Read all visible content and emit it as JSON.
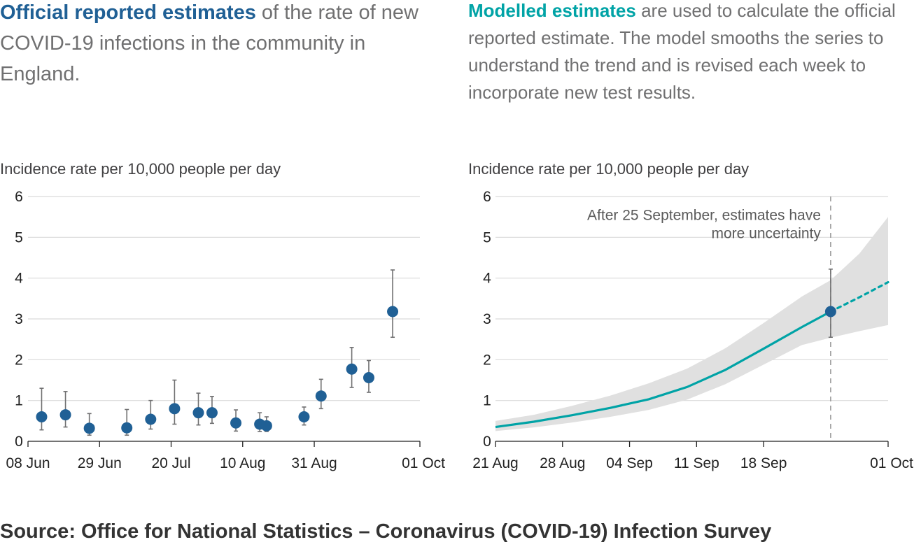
{
  "left_panel": {
    "headline_highlight": "Official reported estimates",
    "headline_rest": " of the rate of new COVID-19 infections in the community in England.",
    "y_axis_label": "Incidence rate per 10,000 people per day"
  },
  "right_panel": {
    "headline_highlight": "Modelled estimates",
    "headline_rest": " are used to calculate the official reported estimate. The model smooths the series to understand the trend and is revised each week to incorporate new test results.",
    "y_axis_label": "Incidence rate per 10,000 people per day",
    "annotation_line1": "After 25 September, estimates have",
    "annotation_line2": "more uncertainty"
  },
  "source": "Source: Office for National Statistics – Coronavirus (COVID-19) Infection Survey",
  "colors": {
    "official_point": "#206095",
    "model_line": "#00a3a6",
    "band": "#e0e0e0",
    "error_bar": "#707071",
    "grid": "#d9d9d9"
  },
  "chart_data": [
    {
      "type": "scatter",
      "ylabel": "Incidence rate per 10,000 people per day",
      "xlim": [
        "2020-06-08",
        "2020-10-01"
      ],
      "ylim": [
        0,
        6
      ],
      "yticks": [
        "0",
        "1",
        "2",
        "3",
        "4",
        "5",
        "6"
      ],
      "xticks": [
        "08 Jun",
        "29 Jun",
        "20 Jul",
        "10 Aug",
        "31 Aug",
        "01 Oct"
      ],
      "grid": true,
      "series": [
        {
          "points": [
            {
              "x": "2020-06-12",
              "y": 0.6,
              "lower": 0.28,
              "upper": 1.3
            },
            {
              "x": "2020-06-19",
              "y": 0.65,
              "lower": 0.35,
              "upper": 1.22
            },
            {
              "x": "2020-06-26",
              "y": 0.32,
              "lower": 0.15,
              "upper": 0.68
            },
            {
              "x": "2020-07-07",
              "y": 0.33,
              "lower": 0.15,
              "upper": 0.78
            },
            {
              "x": "2020-07-14",
              "y": 0.54,
              "lower": 0.3,
              "upper": 1.0
            },
            {
              "x": "2020-07-21",
              "y": 0.8,
              "lower": 0.42,
              "upper": 1.5
            },
            {
              "x": "2020-07-28",
              "y": 0.7,
              "lower": 0.4,
              "upper": 1.18
            },
            {
              "x": "2020-08-01",
              "y": 0.7,
              "lower": 0.44,
              "upper": 1.1
            },
            {
              "x": "2020-08-08",
              "y": 0.45,
              "lower": 0.25,
              "upper": 0.77
            },
            {
              "x": "2020-08-15",
              "y": 0.42,
              "lower": 0.24,
              "upper": 0.7
            },
            {
              "x": "2020-08-17",
              "y": 0.38,
              "lower": 0.24,
              "upper": 0.6
            },
            {
              "x": "2020-08-28",
              "y": 0.6,
              "lower": 0.4,
              "upper": 0.84
            },
            {
              "x": "2020-09-02",
              "y": 1.11,
              "lower": 0.8,
              "upper": 1.52
            },
            {
              "x": "2020-09-11",
              "y": 1.77,
              "lower": 1.32,
              "upper": 2.3
            },
            {
              "x": "2020-09-16",
              "y": 1.56,
              "lower": 1.2,
              "upper": 1.98
            },
            {
              "x": "2020-09-23",
              "y": 3.18,
              "lower": 2.55,
              "upper": 4.2
            }
          ]
        }
      ]
    },
    {
      "type": "line",
      "ylabel": "Incidence rate per 10,000 people per day",
      "xlim": [
        "2020-08-21",
        "2020-10-01"
      ],
      "ylim": [
        0,
        6
      ],
      "yticks": [
        "0",
        "1",
        "2",
        "3",
        "4",
        "5",
        "6"
      ],
      "xticks": [
        "21 Aug",
        "28 Aug",
        "04 Sep",
        "11 Sep",
        "18 Sep",
        "01 Oct"
      ],
      "grid": true,
      "marker_date": "2020-09-25",
      "series": [
        {
          "style": "solid",
          "points": [
            {
              "x": "2020-08-21",
              "y": 0.35,
              "lower": 0.25,
              "upper": 0.5
            },
            {
              "x": "2020-08-25",
              "y": 0.48,
              "lower": 0.34,
              "upper": 0.65
            },
            {
              "x": "2020-08-29",
              "y": 0.64,
              "lower": 0.46,
              "upper": 0.87
            },
            {
              "x": "2020-09-02",
              "y": 0.82,
              "lower": 0.6,
              "upper": 1.12
            },
            {
              "x": "2020-09-06",
              "y": 1.03,
              "lower": 0.77,
              "upper": 1.42
            },
            {
              "x": "2020-09-10",
              "y": 1.33,
              "lower": 1.02,
              "upper": 1.78
            },
            {
              "x": "2020-09-14",
              "y": 1.75,
              "lower": 1.4,
              "upper": 2.28
            },
            {
              "x": "2020-09-18",
              "y": 2.27,
              "lower": 1.88,
              "upper": 2.9
            },
            {
              "x": "2020-09-22",
              "y": 2.8,
              "lower": 2.36,
              "upper": 3.55
            },
            {
              "x": "2020-09-25",
              "y": 3.18,
              "lower": 2.54,
              "upper": 3.95
            }
          ]
        },
        {
          "style": "dotted",
          "points": [
            {
              "x": "2020-09-25",
              "y": 3.18,
              "lower": 2.54,
              "upper": 3.95
            },
            {
              "x": "2020-09-28",
              "y": 3.53,
              "lower": 2.7,
              "upper": 4.6
            },
            {
              "x": "2020-10-01",
              "y": 3.9,
              "lower": 2.85,
              "upper": 5.5
            }
          ]
        }
      ],
      "official_point": {
        "x": "2020-09-25",
        "y": 3.18,
        "lower": 2.55,
        "upper": 4.22
      }
    }
  ]
}
